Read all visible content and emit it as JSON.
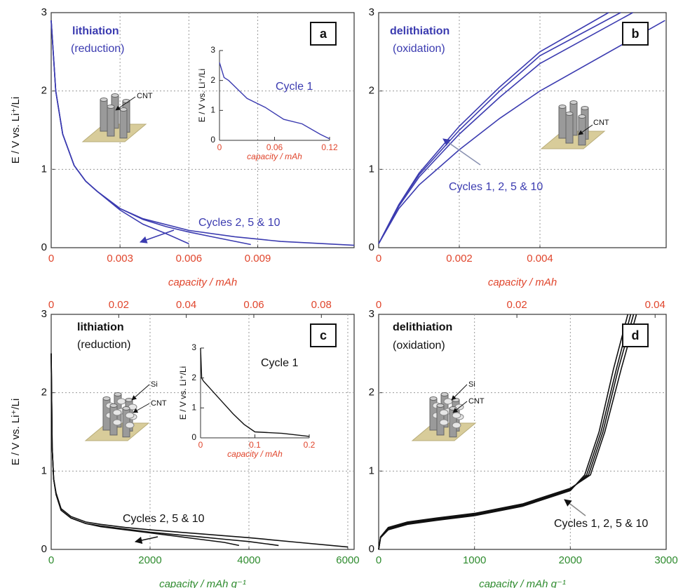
{
  "chart_data": [
    {
      "type": "line",
      "panel": "a",
      "color": "#3b3bb0",
      "annotation_color": "#3b3bb0",
      "xtick_color": "#e0452c",
      "grid": true,
      "annotations": [
        "lithiation",
        "(reduction)",
        "Cycles 2, 5 & 10",
        "CNT"
      ],
      "xlabel": "capacity / mAh",
      "ylabel": "E / V vs. Li⁺/Li",
      "xlim": [
        0,
        0.0132
      ],
      "xticks": [
        0,
        0.003,
        0.006,
        0.009
      ],
      "ylim": [
        0,
        3
      ],
      "yticks": [
        0,
        1,
        2,
        3
      ],
      "series": [
        {
          "color": "#3b3bb0",
          "x": [
            0,
            0.0002,
            0.0005,
            0.001,
            0.0015,
            0.002,
            0.003,
            0.004,
            0.005,
            0.006
          ],
          "values": [
            2.9,
            2.0,
            1.45,
            1.05,
            0.85,
            0.72,
            0.48,
            0.3,
            0.18,
            0.05
          ]
        },
        {
          "color": "#3b3bb0",
          "x": [
            0,
            0.0002,
            0.0005,
            0.001,
            0.0015,
            0.002,
            0.003,
            0.004,
            0.005,
            0.006,
            0.007,
            0.0087
          ],
          "values": [
            2.9,
            2.0,
            1.45,
            1.05,
            0.85,
            0.72,
            0.5,
            0.36,
            0.27,
            0.2,
            0.14,
            0.04
          ]
        },
        {
          "color": "#3b3bb0",
          "x": [
            0,
            0.0002,
            0.0005,
            0.001,
            0.0015,
            0.002,
            0.003,
            0.004,
            0.006,
            0.008,
            0.01,
            0.0132
          ],
          "values": [
            2.9,
            2.0,
            1.45,
            1.05,
            0.85,
            0.72,
            0.5,
            0.37,
            0.22,
            0.14,
            0.08,
            0.03
          ]
        }
      ],
      "inset": {
        "type": "line",
        "color": "#3b3bb0",
        "xtick_color": "#e0452c",
        "annotations": [
          "Cycle 1"
        ],
        "xlabel": "capacity / mAh",
        "ylabel": "E / V vs. Li⁺/Li",
        "xlim": [
          0,
          0.12
        ],
        "xticks": [
          0,
          0.06,
          0.12
        ],
        "ylim": [
          0,
          3
        ],
        "yticks": [
          0,
          1,
          2,
          3
        ],
        "series": [
          {
            "color": "#3b3bb0",
            "x": [
              0,
              0.005,
              0.01,
              0.02,
              0.03,
              0.05,
              0.07,
              0.09,
              0.11,
              0.12
            ],
            "values": [
              2.6,
              2.1,
              2.0,
              1.7,
              1.4,
              1.1,
              0.7,
              0.55,
              0.2,
              0.05
            ]
          }
        ]
      }
    },
    {
      "type": "line",
      "panel": "b",
      "color": "#3b3bb0",
      "annotation_color": "#3b3bb0",
      "xtick_color": "#e0452c",
      "grid": true,
      "annotations": [
        "delithiation",
        "(oxidation)",
        "Cycles 1, 2, 5 & 10",
        "CNT"
      ],
      "xlabel": "capacity / mAh",
      "xlim": [
        0,
        0.00713
      ],
      "xticks": [
        0,
        0.002,
        0.004
      ],
      "ylim": [
        0,
        3
      ],
      "yticks": [
        0,
        1,
        2,
        3
      ],
      "series": [
        {
          "color": "#3b3bb0",
          "x": [
            0,
            0.0005,
            0.001,
            0.002,
            0.003,
            0.004,
            0.0057
          ],
          "values": [
            0.05,
            0.55,
            0.95,
            1.55,
            2.05,
            2.5,
            3.0
          ]
        },
        {
          "color": "#3b3bb0",
          "x": [
            0,
            0.0005,
            0.001,
            0.002,
            0.003,
            0.004,
            0.006
          ],
          "values": [
            0.05,
            0.55,
            0.93,
            1.5,
            2.0,
            2.45,
            3.0
          ]
        },
        {
          "color": "#3b3bb0",
          "x": [
            0,
            0.0005,
            0.001,
            0.002,
            0.003,
            0.004,
            0.0063
          ],
          "values": [
            0.05,
            0.53,
            0.9,
            1.45,
            1.92,
            2.35,
            3.0
          ]
        },
        {
          "color": "#3b3bb0",
          "x": [
            0,
            0.0005,
            0.001,
            0.002,
            0.003,
            0.004,
            0.0071
          ],
          "values": [
            0.05,
            0.5,
            0.8,
            1.25,
            1.65,
            2.0,
            2.9
          ]
        }
      ]
    },
    {
      "type": "line",
      "panel": "c",
      "color": "#111111",
      "annotation_color": "#111111",
      "xtick_color": "#2e8b2e",
      "x2tick_color": "#e0452c",
      "grid": true,
      "annotations": [
        "lithiation",
        "(reduction)",
        "Cycles 2, 5 & 10",
        "Si",
        "CNT"
      ],
      "xlabel": "capacity / mAh g⁻¹",
      "ylabel": "E / V vs. Li⁺/Li",
      "xlim": [
        0,
        6128
      ],
      "xticks": [
        0,
        2000,
        4000,
        6000
      ],
      "x2lim": [
        0,
        0.0897
      ],
      "x2ticks": [
        0,
        0.02,
        0.04,
        0.06,
        0.08
      ],
      "ylim": [
        0,
        3
      ],
      "yticks": [
        0,
        1,
        2,
        3
      ],
      "series": [
        {
          "color": "#111111",
          "x": [
            0,
            20,
            50,
            100,
            200,
            400,
            700,
            1000,
            1500,
            2000,
            2500,
            3000,
            3500,
            3800
          ],
          "values": [
            2.5,
            1.3,
            0.9,
            0.7,
            0.5,
            0.4,
            0.33,
            0.29,
            0.25,
            0.21,
            0.17,
            0.13,
            0.09,
            0.05
          ]
        },
        {
          "color": "#111111",
          "x": [
            0,
            20,
            50,
            100,
            200,
            400,
            700,
            1000,
            1500,
            2000,
            2500,
            3000,
            3500,
            4000,
            4600
          ],
          "values": [
            2.5,
            1.3,
            0.9,
            0.7,
            0.5,
            0.4,
            0.33,
            0.3,
            0.26,
            0.22,
            0.19,
            0.16,
            0.13,
            0.1,
            0.05
          ]
        },
        {
          "color": "#111111",
          "x": [
            0,
            20,
            50,
            100,
            200,
            400,
            700,
            1000,
            1500,
            2000,
            3000,
            4000,
            5000,
            6000
          ],
          "values": [
            2.5,
            1.3,
            0.9,
            0.72,
            0.52,
            0.42,
            0.35,
            0.32,
            0.28,
            0.25,
            0.2,
            0.15,
            0.09,
            0.03
          ]
        }
      ],
      "inset": {
        "type": "line",
        "color": "#111111",
        "xtick_color": "#e0452c",
        "annotations": [
          "Cycle 1"
        ],
        "xlabel": "capacity / mAh",
        "ylabel": "E / V vs. Li⁺/Li",
        "xlim": [
          0,
          0.2
        ],
        "xticks": [
          0,
          0.1,
          0.2
        ],
        "ylim": [
          0,
          3
        ],
        "yticks": [
          0,
          1,
          2,
          3
        ],
        "series": [
          {
            "color": "#111111",
            "x": [
              0,
              0.002,
              0.005,
              0.02,
              0.04,
              0.06,
              0.08,
              0.1,
              0.15,
              0.2
            ],
            "values": [
              3.0,
              2.0,
              1.9,
              1.6,
              1.2,
              0.8,
              0.45,
              0.2,
              0.15,
              0.05
            ]
          }
        ]
      }
    },
    {
      "type": "line",
      "panel": "d",
      "color": "#111111",
      "annotation_color": "#111111",
      "xtick_color": "#2e8b2e",
      "x2tick_color": "#e0452c",
      "grid": true,
      "annotations": [
        "delithiation",
        "(oxidation)",
        "Cycles 1, 2, 5 & 10",
        "Si",
        "CNT"
      ],
      "xlabel": "capacity / mAh g⁻¹",
      "xlim": [
        0,
        3000
      ],
      "xticks": [
        0,
        1000,
        2000,
        3000
      ],
      "x2lim": [
        0,
        0.0416
      ],
      "x2ticks": [
        0,
        0.02,
        0.04
      ],
      "ylim": [
        0,
        3
      ],
      "yticks": [
        0,
        1,
        2,
        3
      ],
      "series": [
        {
          "color": "#111111",
          "x": [
            0,
            20,
            100,
            300,
            600,
            1000,
            1500,
            2000,
            2150,
            2300,
            2450,
            2600
          ],
          "values": [
            0,
            0.15,
            0.25,
            0.32,
            0.37,
            0.43,
            0.55,
            0.75,
            0.95,
            1.5,
            2.3,
            3.0
          ]
        },
        {
          "color": "#111111",
          "x": [
            0,
            20,
            100,
            300,
            600,
            1000,
            1500,
            2000,
            2170,
            2320,
            2480,
            2630
          ],
          "values": [
            0,
            0.15,
            0.26,
            0.33,
            0.38,
            0.44,
            0.56,
            0.76,
            0.95,
            1.5,
            2.3,
            3.0
          ]
        },
        {
          "color": "#111111",
          "x": [
            0,
            20,
            100,
            300,
            600,
            1000,
            1500,
            2000,
            2190,
            2340,
            2500,
            2660
          ],
          "values": [
            0,
            0.16,
            0.27,
            0.34,
            0.39,
            0.45,
            0.57,
            0.77,
            0.95,
            1.5,
            2.3,
            3.0
          ]
        },
        {
          "color": "#111111",
          "x": [
            0,
            20,
            100,
            300,
            600,
            1000,
            1500,
            2000,
            2210,
            2360,
            2530,
            2690
          ],
          "values": [
            0,
            0.16,
            0.28,
            0.35,
            0.4,
            0.46,
            0.58,
            0.78,
            0.95,
            1.5,
            2.3,
            3.0
          ]
        }
      ]
    }
  ]
}
